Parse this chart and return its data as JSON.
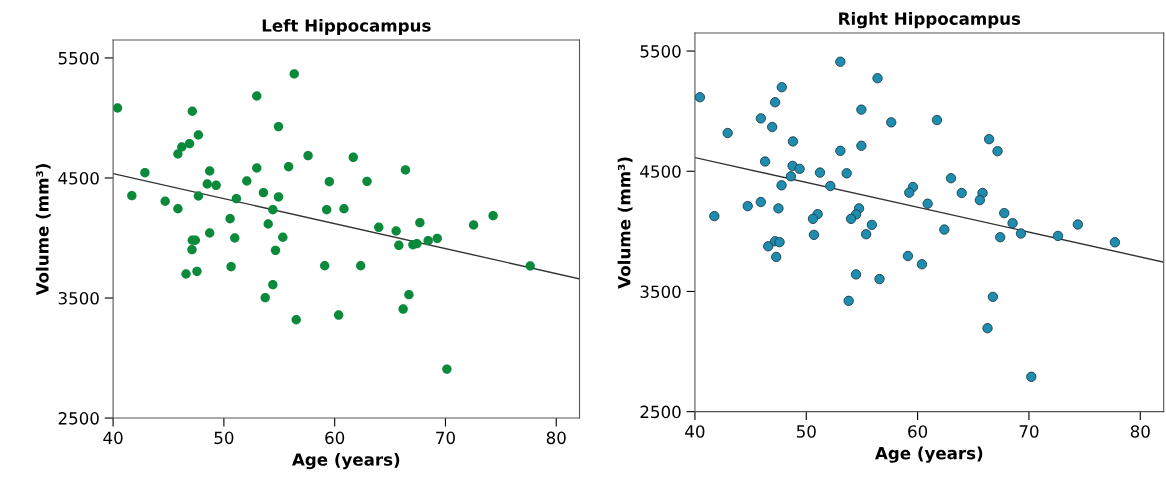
{
  "chart_data": [
    {
      "type": "scatter",
      "title": "Left Hippocampus",
      "xlabel": "Age (years)",
      "ylabel": "Volume (mm³)",
      "xlim": [
        40,
        82.1
      ],
      "ylim": [
        2500,
        5650
      ],
      "xticks": [
        40,
        50,
        60,
        70,
        80
      ],
      "yticks": [
        2500,
        3500,
        4500,
        5500
      ],
      "grid": false,
      "series": [
        {
          "marker": "circle",
          "color": "#0b8a3c",
          "x": [
            40.4,
            56.35,
            52.97,
            47.15,
            54.93,
            47.7,
            46.9,
            46.2,
            45.85,
            57.6,
            55.84,
            52.97,
            42.87,
            48.72,
            52.07,
            48.5,
            49.3,
            59.52,
            41.69,
            47.7,
            53.57,
            54.93,
            51.13,
            44.7,
            45.85,
            54.42,
            59.28,
            50.56,
            54.0,
            48.72,
            55.32,
            50.98,
            47.42,
            47.15,
            47.12,
            54.66,
            59.1,
            50.65,
            47.57,
            46.58,
            54.42,
            53.73,
            56.53,
            61.68,
            66.39,
            62.92,
            60.84,
            63.98,
            65.55,
            67.69,
            72.54,
            74.3,
            65.79,
            67.06,
            67.42,
            68.44,
            69.26,
            77.65,
            62.35,
            66.7,
            66.18,
            60.36,
            70.13
          ],
          "values": [
            5083,
            5367,
            5183,
            5056,
            4928,
            4858,
            4786,
            4758,
            4700,
            4686,
            4594,
            4583,
            4544,
            4558,
            4475,
            4450,
            4439,
            4469,
            4353,
            4350,
            4378,
            4342,
            4328,
            4306,
            4244,
            4236,
            4236,
            4161,
            4117,
            4042,
            4006,
            4000,
            3981,
            3981,
            3903,
            3897,
            3769,
            3761,
            3722,
            3700,
            3611,
            3503,
            3319,
            4672,
            4567,
            4472,
            4244,
            4089,
            4058,
            4128,
            4108,
            4186,
            3939,
            3944,
            3953,
            3978,
            3997,
            3767,
            3769,
            3528,
            3408,
            3358,
            2908
          ]
        },
        {
          "type": "line",
          "color": "#333333",
          "x": [
            40,
            82.1
          ],
          "values": [
            4536,
            3660
          ]
        }
      ]
    },
    {
      "type": "scatter",
      "title": "Right Hippocampus",
      "xlabel": "Age (years)",
      "ylabel": "Volume (mm³)",
      "xlim": [
        40,
        82.1
      ],
      "ylim": [
        2500,
        5650
      ],
      "xticks": [
        40,
        50,
        60,
        70,
        80
      ],
      "yticks": [
        2500,
        3500,
        4500,
        5500
      ],
      "grid": false,
      "series": [
        {
          "marker": "circle",
          "color": "#1f8db0",
          "x": [
            40.45,
            53.06,
            56.4,
            47.8,
            47.2,
            54.95,
            45.92,
            46.94,
            57.63,
            42.94,
            48.8,
            54.95,
            53.06,
            46.3,
            48.77,
            49.4,
            48.62,
            51.23,
            53.63,
            52.16,
            47.78,
            59.58,
            59.25,
            44.74,
            45.92,
            41.74,
            47.5,
            51.02,
            50.6,
            54.74,
            54.47,
            54.02,
            55.89,
            55.38,
            50.69,
            47.2,
            47.6,
            46.58,
            47.3,
            59.13,
            54.47,
            56.58,
            53.81,
            60.39,
            61.74,
            66.42,
            67.18,
            63.0,
            63.96,
            65.83,
            65.59,
            60.9,
            67.78,
            68.53,
            69.28,
            67.42,
            72.61,
            74.39,
            77.72,
            62.4,
            66.76,
            66.28,
            70.21
          ],
          "values": [
            5116,
            5411,
            5274,
            5199,
            5074,
            5013,
            4940,
            4868,
            4907,
            4818,
            4748,
            4712,
            4670,
            4581,
            4545,
            4520,
            4458,
            4489,
            4483,
            4377,
            4383,
            4369,
            4322,
            4210,
            4244,
            4127,
            4191,
            4143,
            4104,
            4191,
            4141,
            4104,
            4054,
            3976,
            3971,
            3918,
            3910,
            3876,
            3787,
            3795,
            3642,
            3603,
            3422,
            3726,
            4926,
            4767,
            4667,
            4442,
            4319,
            4319,
            4260,
            4230,
            4152,
            4068,
            3982,
            3951,
            3962,
            4057,
            3909,
            4015,
            3455,
            3194,
            2790
          ]
        },
        {
          "type": "line",
          "color": "#333333",
          "x": [
            40,
            82.1
          ],
          "values": [
            4614,
            3744
          ]
        }
      ]
    }
  ]
}
